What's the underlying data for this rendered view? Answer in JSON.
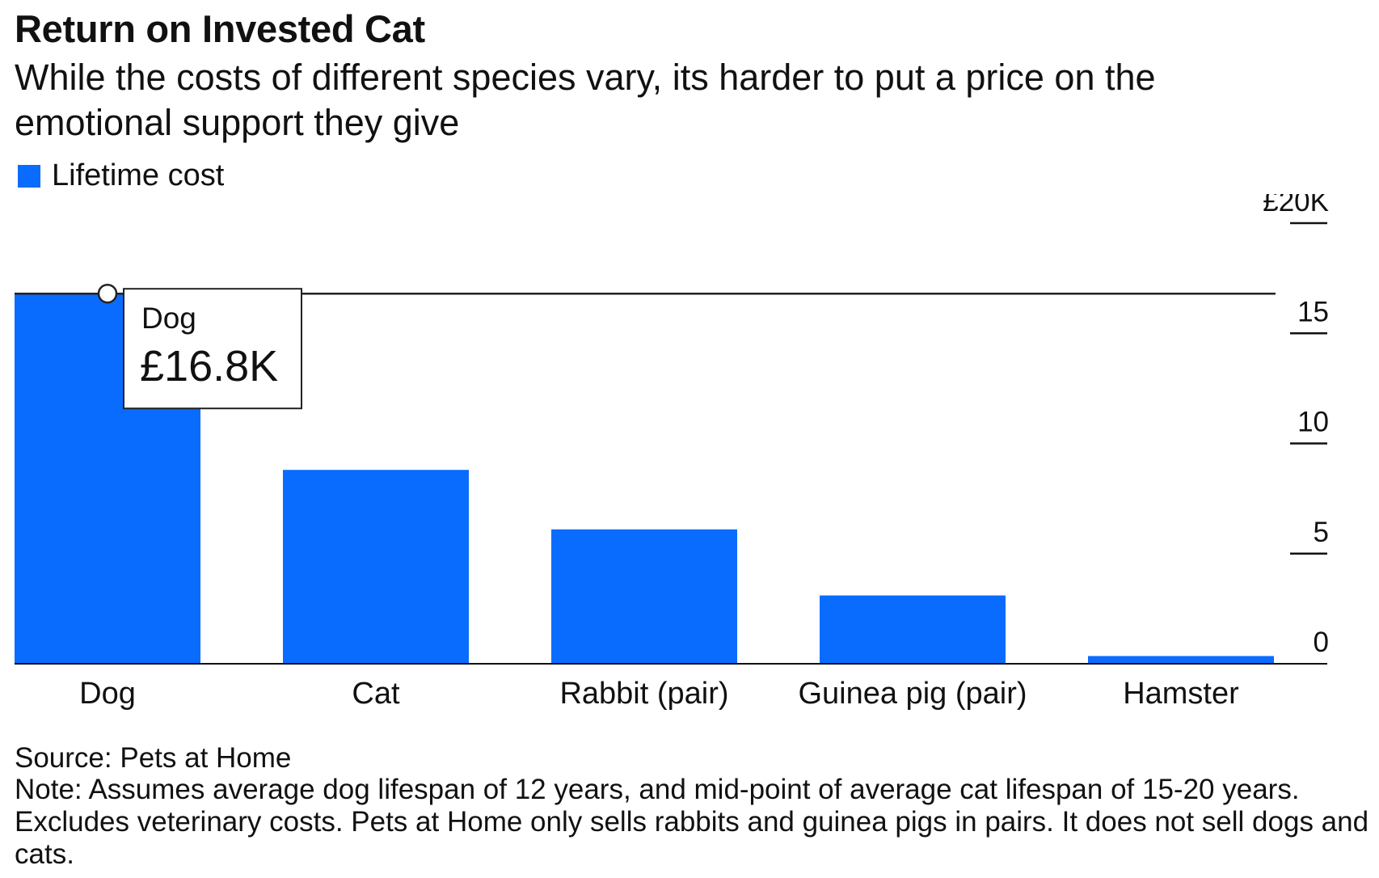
{
  "header": {
    "title": "Return on Invested Cat",
    "subtitle": "While the costs of different species vary, its harder to put a price on the emotional support they give"
  },
  "legend": {
    "label": "Lifetime cost",
    "color": "#0A6CFF"
  },
  "tooltip": {
    "category": "Dog",
    "value_label": "£16.8K"
  },
  "chart_data": {
    "type": "bar",
    "categories": [
      "Dog",
      "Cat",
      "Rabbit (pair)",
      "Guinea pig (pair)",
      "Hamster"
    ],
    "series": [
      {
        "name": "Lifetime cost",
        "values": [
          16.8,
          8.8,
          6.1,
          3.1,
          0.35
        ]
      }
    ],
    "ylim": [
      0,
      20
    ],
    "yticks": [
      0,
      5,
      10,
      15,
      20
    ],
    "ytick_labels": [
      "0",
      "5",
      "10",
      "15",
      "£20K"
    ],
    "y_axis_position": "right",
    "highlight_category": "Dog",
    "bar_color": "#0A6CFF"
  },
  "footer": {
    "source": "Source: Pets at Home",
    "note": "Note: Assumes average dog lifespan of 12 years, and mid-point of average cat lifespan of 15-20 years. Excludes veterinary costs. Pets at Home only sells rabbits and guinea pigs in pairs. It does not sell dogs and cats."
  }
}
